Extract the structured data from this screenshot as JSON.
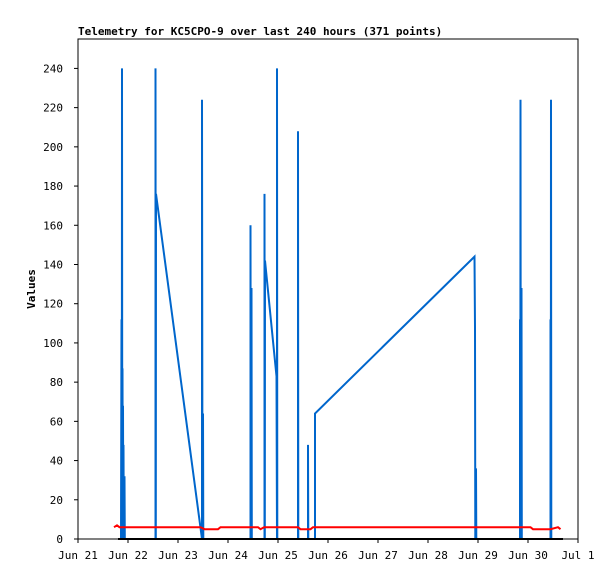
{
  "chart_data": {
    "type": "line",
    "title": "Telemetry for KC5CPO-9 over last 240 hours (371 points)",
    "xlabel": "",
    "ylabel": "Values",
    "x_ticks": [
      "Jun 21",
      "Jun 22",
      "Jun 23",
      "Jun 24",
      "Jun 25",
      "Jun 26",
      "Jun 27",
      "Jun 28",
      "Jun 29",
      "Jun 30",
      "Jul 1"
    ],
    "y_ticks": [
      0,
      20,
      40,
      60,
      80,
      100,
      120,
      140,
      160,
      180,
      200,
      220,
      240
    ],
    "xlim_days": [
      0,
      10
    ],
    "ylim": [
      0,
      255
    ],
    "grid": false,
    "legend": "none",
    "colors": {
      "series_blue": "#0066cc",
      "series_red": "#ff0000",
      "series_black": "#000000"
    },
    "series": [
      {
        "color": "#0066cc",
        "points": [
          [
            0.86,
            0
          ],
          [
            0.87,
            112
          ],
          [
            0.875,
            0
          ],
          [
            0.88,
            240
          ],
          [
            0.885,
            0
          ],
          [
            0.89,
            87
          ],
          [
            0.895,
            0
          ],
          [
            0.9,
            68
          ],
          [
            0.905,
            0
          ],
          [
            0.91,
            48
          ],
          [
            0.915,
            0
          ],
          [
            0.93,
            32
          ],
          [
            0.935,
            0
          ],
          [
            1.55,
            0
          ],
          [
            1.55,
            240
          ],
          [
            1.555,
            0
          ],
          [
            1.56,
            176
          ],
          [
            2.48,
            0
          ],
          [
            2.48,
            224
          ],
          [
            2.49,
            0
          ],
          [
            2.5,
            64
          ],
          [
            2.505,
            0
          ],
          [
            3.45,
            0
          ],
          [
            3.45,
            160
          ],
          [
            3.455,
            0
          ],
          [
            3.47,
            128
          ],
          [
            3.475,
            0
          ],
          [
            3.73,
            0
          ],
          [
            3.73,
            176
          ],
          [
            3.735,
            0
          ],
          [
            3.74,
            142
          ],
          [
            3.97,
            83
          ],
          [
            3.98,
            0
          ],
          [
            3.98,
            240
          ],
          [
            3.985,
            0
          ],
          [
            4.4,
            0
          ],
          [
            4.4,
            208
          ],
          [
            4.405,
            0
          ],
          [
            4.6,
            0
          ],
          [
            4.6,
            48
          ],
          [
            4.605,
            0
          ],
          [
            4.74,
            0
          ],
          [
            4.74,
            64
          ],
          [
            7.93,
            144
          ],
          [
            7.94,
            108
          ],
          [
            7.945,
            0
          ],
          [
            7.96,
            36
          ],
          [
            7.965,
            0
          ],
          [
            8.84,
            0
          ],
          [
            8.84,
            112
          ],
          [
            8.845,
            0
          ],
          [
            8.85,
            224
          ],
          [
            8.855,
            0
          ],
          [
            8.87,
            128
          ],
          [
            8.875,
            0
          ],
          [
            9.45,
            0
          ],
          [
            9.45,
            112
          ],
          [
            9.455,
            0
          ],
          [
            9.46,
            224
          ],
          [
            9.465,
            0
          ]
        ]
      },
      {
        "color": "#ff0000",
        "points": [
          [
            0.72,
            6
          ],
          [
            0.78,
            7
          ],
          [
            0.83,
            6
          ],
          [
            2.0,
            6
          ],
          [
            2.45,
            6
          ],
          [
            2.53,
            5
          ],
          [
            2.8,
            5
          ],
          [
            2.85,
            6
          ],
          [
            3.6,
            6
          ],
          [
            3.65,
            5
          ],
          [
            3.72,
            6
          ],
          [
            4.4,
            6
          ],
          [
            4.45,
            5
          ],
          [
            4.65,
            5
          ],
          [
            4.7,
            6
          ],
          [
            9.05,
            6
          ],
          [
            9.1,
            5
          ],
          [
            9.4,
            5
          ],
          [
            9.45,
            5
          ],
          [
            9.6,
            6
          ],
          [
            9.65,
            5
          ]
        ]
      },
      {
        "color": "#000000",
        "points": [
          [
            0.8,
            0
          ],
          [
            9.7,
            0
          ]
        ]
      }
    ]
  }
}
